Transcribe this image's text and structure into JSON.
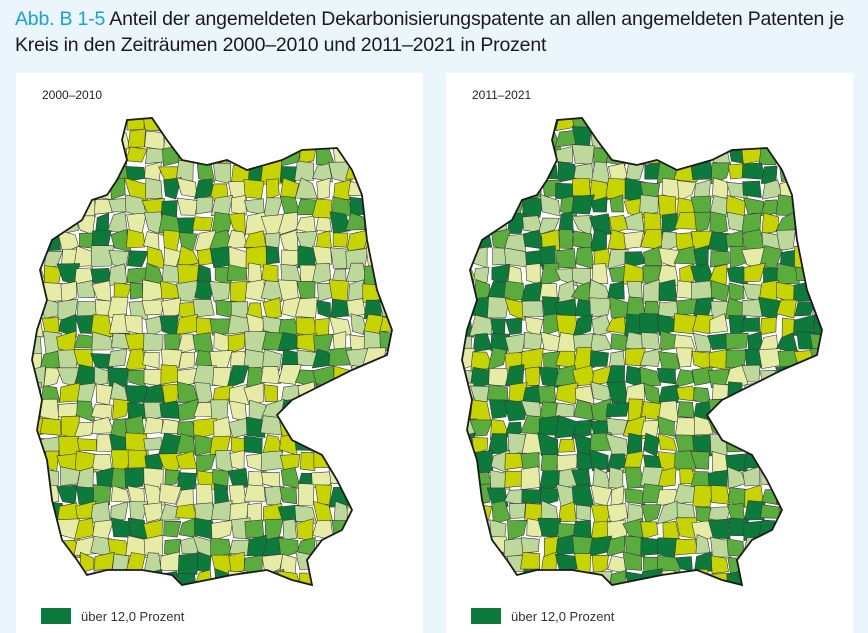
{
  "figure": {
    "label": "Abb. B 1-5",
    "title": "Anteil der angemeldeten Dekarbonisierungspatente an allen angemeldeten Patenten je Kreis in den Zeiträumen 2000–2010 und 2011–2021 in Prozent"
  },
  "maps": [
    {
      "period": "2000–2010",
      "seed": 7,
      "weights": [
        0.14,
        0.18,
        0.22,
        0.2,
        0.26
      ]
    },
    {
      "period": "2011–2021",
      "seed": 19,
      "weights": [
        0.26,
        0.24,
        0.2,
        0.18,
        0.12
      ]
    }
  ],
  "legend": {
    "items": [
      {
        "label": "über 12,0 Prozent",
        "color": "#0b7a3a"
      }
    ]
  },
  "palette": [
    "#0b7a3a",
    "#5aac3c",
    "#bcd89a",
    "#c8d400",
    "#e6eba6"
  ]
}
